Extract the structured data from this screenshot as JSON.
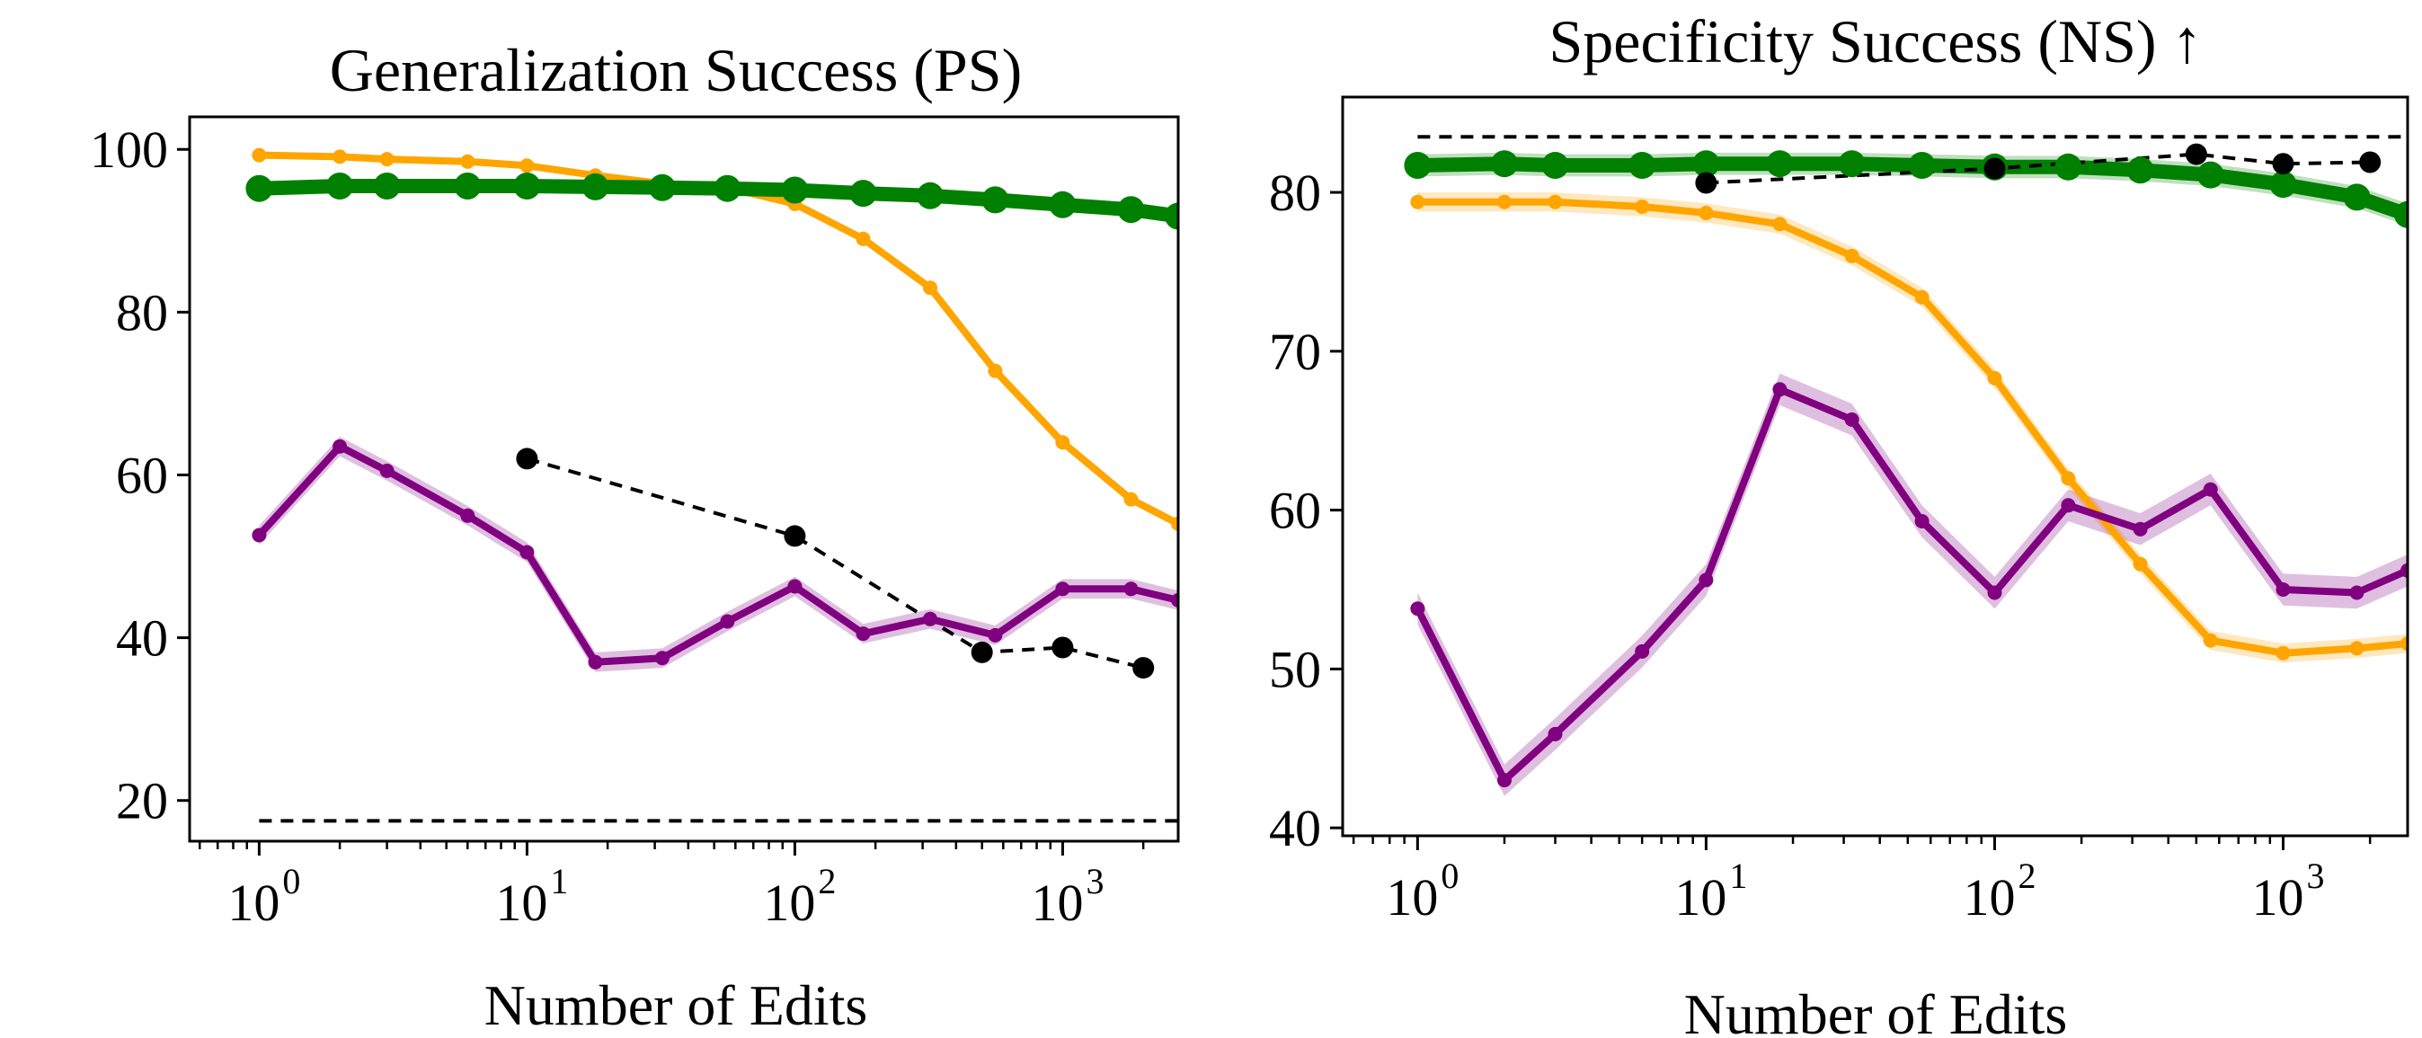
{
  "chart_data": [
    {
      "type": "line",
      "title": "Generalization Success (PS)",
      "xlabel": "Number of Edits",
      "ylabel": "",
      "xscale": "log",
      "xlim": [
        0.55,
        2700
      ],
      "ylim": [
        15,
        104
      ],
      "yticks": [
        20,
        40,
        60,
        80,
        100
      ],
      "xticks": [
        1,
        10,
        100,
        1000
      ],
      "xtick_labels": [
        {
          "base": "10",
          "exp": "0"
        },
        {
          "base": "10",
          "exp": "1"
        },
        {
          "base": "10",
          "exp": "2"
        },
        {
          "base": "10",
          "exp": "3"
        }
      ],
      "legend": "none",
      "series": [
        {
          "color": "#ffa500",
          "style": "solid",
          "thickness": "medium",
          "x": [
            1,
            2,
            3,
            6,
            10,
            18,
            32,
            56,
            100,
            180,
            320,
            560,
            1000,
            1800,
            2700
          ],
          "y": [
            99.3,
            99.1,
            98.8,
            98.5,
            98.0,
            96.8,
            95.8,
            95.3,
            93.3,
            89.0,
            83.0,
            72.8,
            64.0,
            57.0,
            54.0
          ],
          "band": 0.4
        },
        {
          "color": "#008000",
          "style": "solid",
          "thickness": "thick",
          "x": [
            1,
            2,
            3,
            6,
            10,
            18,
            32,
            56,
            100,
            180,
            320,
            560,
            1000,
            1800,
            2700
          ],
          "y": [
            95.2,
            95.5,
            95.5,
            95.5,
            95.5,
            95.4,
            95.3,
            95.2,
            95.0,
            94.6,
            94.3,
            93.8,
            93.2,
            92.6,
            91.8
          ],
          "band": 0.3
        },
        {
          "color": "#800080",
          "style": "solid",
          "thickness": "medium",
          "x": [
            1,
            2,
            3,
            6,
            10,
            18,
            32,
            56,
            100,
            180,
            320,
            560,
            1000,
            1800,
            2700
          ],
          "y": [
            52.6,
            63.5,
            60.5,
            55.0,
            50.5,
            37.0,
            37.5,
            42.0,
            46.3,
            40.5,
            42.3,
            40.3,
            46.0,
            46.0,
            44.6
          ],
          "band": 1.2
        },
        {
          "color": "#000000",
          "style": "dashed",
          "thickness": "thin",
          "x": [
            10,
            100,
            500,
            1000,
            2000
          ],
          "y": [
            62.0,
            52.5,
            38.2,
            38.8,
            36.3
          ],
          "band": 0
        },
        {
          "color": "#000000",
          "style": "dashed",
          "thickness": "thin",
          "markers": false,
          "x": [
            1,
            2700
          ],
          "y": [
            17.5,
            17.5
          ],
          "band": 0
        }
      ]
    },
    {
      "type": "line",
      "title": "Specificity Success (NS) ↑",
      "xlabel": "Number of Edits",
      "ylabel": "",
      "xscale": "log",
      "xlim": [
        0.55,
        2700
      ],
      "ylim": [
        39.5,
        86
      ],
      "yticks": [
        40,
        50,
        60,
        70,
        80
      ],
      "xticks": [
        1,
        10,
        100,
        1000
      ],
      "xtick_labels": [
        {
          "base": "10",
          "exp": "0"
        },
        {
          "base": "10",
          "exp": "1"
        },
        {
          "base": "10",
          "exp": "2"
        },
        {
          "base": "10",
          "exp": "3"
        }
      ],
      "legend": "none",
      "series": [
        {
          "color": "#ffa500",
          "style": "solid",
          "thickness": "medium",
          "x": [
            1,
            2,
            3,
            6,
            10,
            18,
            32,
            56,
            100,
            180,
            320,
            560,
            1000,
            1800,
            2700
          ],
          "y": [
            79.4,
            79.4,
            79.4,
            79.1,
            78.7,
            78.0,
            76.0,
            73.4,
            68.3,
            62.0,
            56.6,
            51.8,
            51.0,
            51.3,
            51.6
          ],
          "band": 0.6
        },
        {
          "color": "#008000",
          "style": "solid",
          "thickness": "thick",
          "x": [
            1,
            2,
            3,
            6,
            10,
            18,
            32,
            56,
            100,
            180,
            320,
            560,
            1000,
            1800,
            2700
          ],
          "y": [
            81.7,
            81.8,
            81.7,
            81.7,
            81.8,
            81.8,
            81.8,
            81.7,
            81.6,
            81.6,
            81.4,
            81.1,
            80.5,
            79.7,
            78.6
          ],
          "band": 0.7
        },
        {
          "color": "#800080",
          "style": "solid",
          "thickness": "medium",
          "x": [
            1,
            2,
            3,
            6,
            10,
            18,
            32,
            56,
            100,
            180,
            320,
            560,
            1000,
            1800,
            2700
          ],
          "y": [
            53.8,
            43.0,
            45.9,
            51.1,
            55.6,
            67.6,
            65.7,
            59.3,
            54.8,
            60.3,
            58.8,
            61.3,
            55.0,
            54.8,
            56.2
          ],
          "band": 1.0
        },
        {
          "color": "#000000",
          "style": "dashed",
          "thickness": "thin",
          "x": [
            10,
            100,
            500,
            1000,
            2000
          ],
          "y": [
            80.6,
            81.5,
            82.4,
            81.8,
            81.9
          ],
          "band": 0
        },
        {
          "color": "#000000",
          "style": "dashed",
          "thickness": "thin",
          "markers": false,
          "x": [
            1,
            2700
          ],
          "y": [
            83.5,
            83.5
          ],
          "band": 0
        }
      ]
    }
  ]
}
